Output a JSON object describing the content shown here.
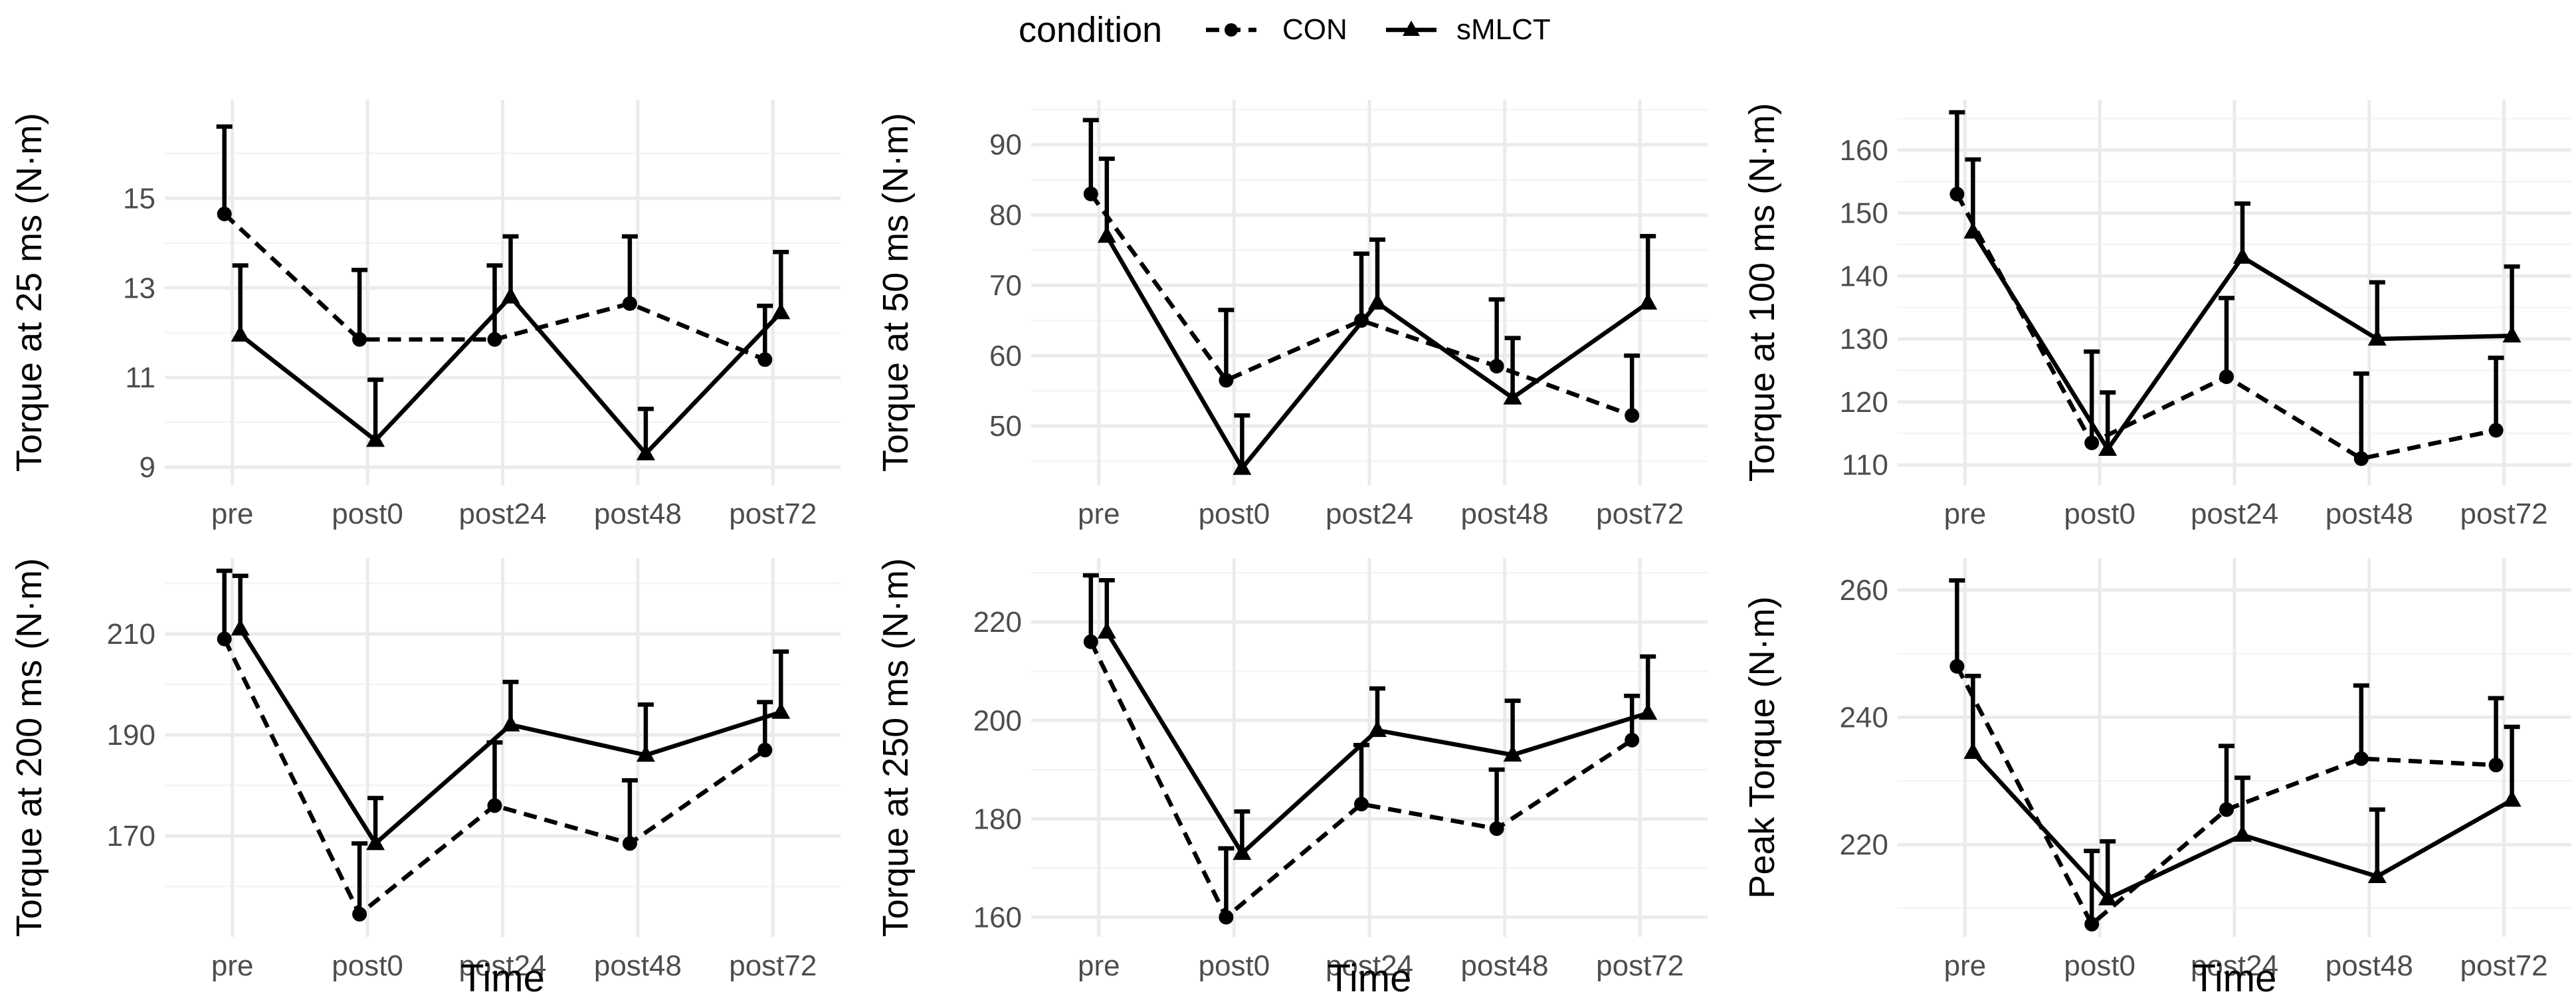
{
  "legend": {
    "title": "condition",
    "items": [
      {
        "name": "CON",
        "line": "dashed",
        "marker": "circle"
      },
      {
        "name": "sMLCT",
        "line": "solid",
        "marker": "triangle"
      }
    ]
  },
  "colors": {
    "ink": "#000000",
    "grid": "#ebebeb",
    "tick_text": "#4d4d4d",
    "background": "#ffffff"
  },
  "chart_data": [
    {
      "type": "line",
      "title": "",
      "xlabel": "",
      "ylabel": "Torque at 25 ms (N·m)",
      "categories": [
        "pre",
        "post0",
        "post24",
        "post48",
        "post72"
      ],
      "ylim": [
        8.6,
        17.2
      ],
      "yticks": [
        9,
        11,
        13,
        15
      ],
      "series": [
        {
          "name": "CON",
          "values": [
            14.65,
            11.85,
            11.85,
            12.65,
            11.4
          ],
          "error_upper": [
            16.6,
            13.4,
            13.5,
            14.15,
            12.6
          ]
        },
        {
          "name": "sMLCT",
          "values": [
            11.95,
            9.6,
            12.8,
            9.3,
            12.45
          ],
          "error_upper": [
            13.5,
            10.95,
            14.15,
            10.3,
            13.8
          ]
        }
      ]
    },
    {
      "type": "line",
      "title": "",
      "xlabel": "",
      "ylabel": "Torque at 50 ms (N·m)",
      "categories": [
        "pre",
        "post0",
        "post24",
        "post48",
        "post72"
      ],
      "ylim": [
        41.6,
        96.4
      ],
      "yticks": [
        50,
        60,
        70,
        80,
        90
      ],
      "series": [
        {
          "name": "CON",
          "values": [
            83.0,
            56.5,
            65.0,
            58.5,
            51.5
          ],
          "error_upper": [
            93.5,
            66.5,
            74.5,
            68.0,
            60.0
          ]
        },
        {
          "name": "sMLCT",
          "values": [
            77.0,
            44.0,
            67.5,
            54.0,
            67.5
          ],
          "error_upper": [
            88.0,
            51.5,
            76.5,
            62.5,
            77.0
          ]
        }
      ]
    },
    {
      "type": "line",
      "title": "",
      "xlabel": "",
      "ylabel": "Torque at 100 ms (N·m)",
      "categories": [
        "pre",
        "post0",
        "post24",
        "post48",
        "post72"
      ],
      "ylim": [
        106.8,
        168.0
      ],
      "yticks": [
        110,
        120,
        130,
        140,
        150,
        160
      ],
      "series": [
        {
          "name": "CON",
          "values": [
            153.0,
            113.5,
            124.0,
            111.0,
            115.5
          ],
          "error_upper": [
            166.0,
            128.0,
            136.5,
            124.5,
            127.0
          ]
        },
        {
          "name": "sMLCT",
          "values": [
            147.0,
            112.5,
            143.0,
            130.0,
            130.5
          ],
          "error_upper": [
            158.5,
            121.5,
            151.5,
            139.0,
            141.5
          ]
        }
      ]
    },
    {
      "type": "line",
      "title": "",
      "xlabel": "Time",
      "ylabel": "Torque at 200 ms (N·m)",
      "categories": [
        "pre",
        "post0",
        "post24",
        "post48",
        "post72"
      ],
      "ylim": [
        150.0,
        225.0
      ],
      "yticks": [
        170,
        190,
        210
      ],
      "series": [
        {
          "name": "CON",
          "values": [
            209.0,
            154.5,
            176.0,
            168.5,
            187.0
          ],
          "error_upper": [
            222.5,
            168.5,
            188.5,
            181.0,
            196.5
          ]
        },
        {
          "name": "sMLCT",
          "values": [
            211.0,
            168.5,
            192.0,
            186.0,
            194.5
          ],
          "error_upper": [
            221.5,
            177.5,
            200.5,
            196.0,
            206.5
          ]
        }
      ]
    },
    {
      "type": "line",
      "title": "",
      "xlabel": "Time",
      "ylabel": "Torque at 250 ms (N·m)",
      "categories": [
        "pre",
        "post0",
        "post24",
        "post48",
        "post72"
      ],
      "ylim": [
        156.0,
        233.0
      ],
      "yticks": [
        160,
        180,
        200,
        220
      ],
      "series": [
        {
          "name": "CON",
          "values": [
            216.0,
            160.0,
            183.0,
            178.0,
            196.0
          ],
          "error_upper": [
            229.5,
            174.0,
            195.0,
            190.0,
            205.0
          ]
        },
        {
          "name": "sMLCT",
          "values": [
            218.0,
            173.0,
            198.0,
            193.0,
            201.5
          ],
          "error_upper": [
            228.5,
            181.5,
            206.5,
            204.0,
            213.0
          ]
        }
      ]
    },
    {
      "type": "line",
      "title": "",
      "xlabel": "Time",
      "ylabel": "Peak Torque (N·m)",
      "categories": [
        "pre",
        "post0",
        "post24",
        "post48",
        "post72"
      ],
      "ylim": [
        205.5,
        265.0
      ],
      "yticks": [
        220,
        240,
        260
      ],
      "series": [
        {
          "name": "CON",
          "values": [
            248.0,
            207.5,
            225.5,
            233.5,
            232.5
          ],
          "error_upper": [
            261.5,
            219.0,
            235.5,
            245.0,
            243.0
          ]
        },
        {
          "name": "sMLCT",
          "values": [
            234.5,
            211.5,
            221.5,
            215.0,
            227.0
          ],
          "error_upper": [
            246.5,
            220.5,
            230.5,
            225.5,
            238.5
          ]
        }
      ]
    }
  ]
}
